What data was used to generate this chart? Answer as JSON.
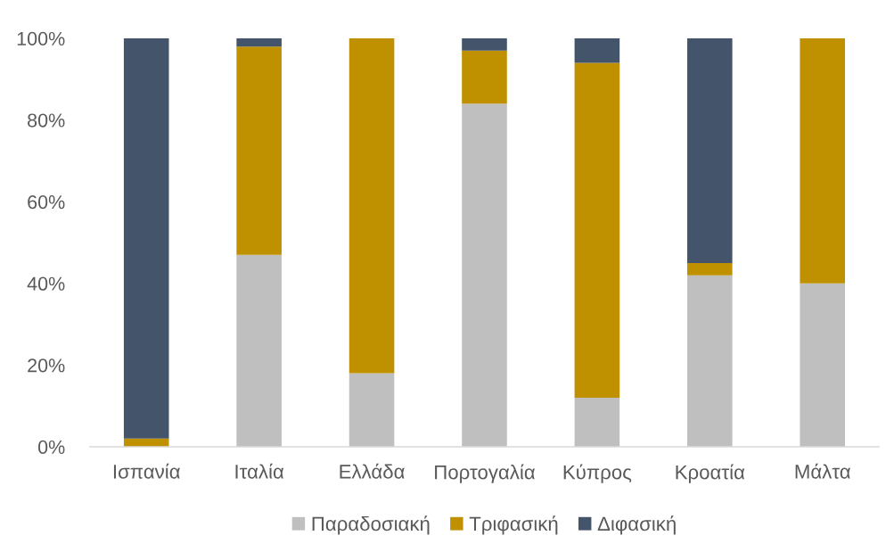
{
  "chart_data": {
    "type": "bar",
    "stacked": true,
    "categories": [
      "Ισπανία",
      "Ιταλία",
      "Ελλάδα",
      "Πορτογαλία",
      "Κύπρος",
      "Κροατία",
      "Μάλτα"
    ],
    "series": [
      {
        "name": "Παραδοσιακή",
        "color": "#bfbfbf",
        "values": [
          0,
          47,
          18,
          84,
          12,
          42,
          40
        ]
      },
      {
        "name": "Τριφασική",
        "color": "#bf9000",
        "values": [
          2,
          51,
          82,
          13,
          82,
          3,
          60
        ]
      },
      {
        "name": "Διφασική",
        "color": "#44546a",
        "values": [
          98,
          2,
          0,
          3,
          6,
          55,
          0
        ]
      }
    ],
    "ylim": [
      0,
      100
    ],
    "yticks": [
      {
        "value": 0,
        "label": "0%"
      },
      {
        "value": 20,
        "label": "20%"
      },
      {
        "value": 40,
        "label": "40%"
      },
      {
        "value": 60,
        "label": "60%"
      },
      {
        "value": 80,
        "label": "80%"
      },
      {
        "value": 100,
        "label": "100%"
      }
    ],
    "grid": false,
    "legend": "bottom"
  }
}
